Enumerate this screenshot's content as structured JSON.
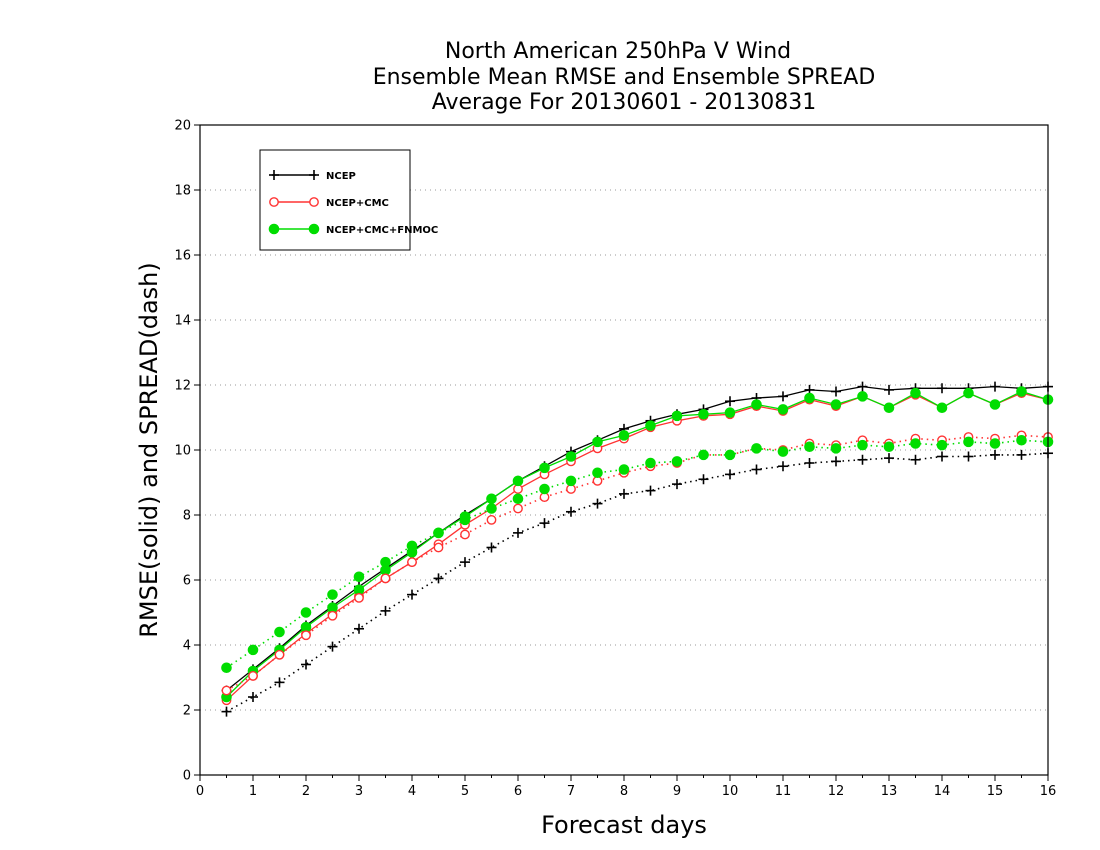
{
  "chart_data": {
    "type": "line",
    "title_lines": [
      "North American 250hPa V Wind",
      "Ensemble Mean RMSE and Ensemble SPREAD",
      "Average For 20130601 - 20130831"
    ],
    "xlabel": "Forecast days",
    "ylabel": "RMSE(solid) and SPREAD(dash)",
    "xlim": [
      0,
      16
    ],
    "ylim": [
      0,
      20
    ],
    "xticks": [
      0,
      1,
      2,
      3,
      4,
      5,
      6,
      7,
      8,
      9,
      10,
      11,
      12,
      13,
      14,
      15,
      16
    ],
    "yticks": [
      0,
      2,
      4,
      6,
      8,
      10,
      12,
      14,
      16,
      18,
      20
    ],
    "grid": "horizontal-dotted",
    "legend_position": "top-left",
    "x": [
      0.5,
      1,
      1.5,
      2,
      2.5,
      3,
      3.5,
      4,
      4.5,
      5,
      5.5,
      6,
      6.5,
      7,
      7.5,
      8,
      8.5,
      9,
      9.5,
      10,
      10.5,
      11,
      11.5,
      12,
      12.5,
      13,
      13.5,
      14,
      14.5,
      15,
      15.5,
      16
    ],
    "series": [
      {
        "name": "NCEP",
        "metric": "rmse",
        "style": "solid",
        "marker": "plus",
        "color": "#000000",
        "values": [
          2.6,
          3.25,
          3.9,
          4.6,
          5.2,
          5.8,
          6.35,
          6.9,
          7.45,
          8.0,
          8.5,
          9.05,
          9.5,
          9.95,
          10.3,
          10.65,
          10.9,
          11.1,
          11.25,
          11.5,
          11.6,
          11.65,
          11.85,
          11.8,
          11.95,
          11.85,
          11.9,
          11.9,
          11.9,
          11.95,
          11.9,
          11.95
        ]
      },
      {
        "name": "NCEP+CMC",
        "metric": "rmse",
        "style": "solid",
        "marker": "circle-open",
        "color": "#ff3333",
        "values": [
          2.3,
          3.05,
          3.7,
          4.35,
          4.95,
          5.5,
          6.05,
          6.55,
          7.1,
          7.7,
          8.2,
          8.8,
          9.25,
          9.65,
          10.05,
          10.35,
          10.7,
          10.9,
          11.05,
          11.1,
          11.35,
          11.2,
          11.55,
          11.35,
          11.65,
          11.3,
          11.7,
          11.3,
          11.75,
          11.4,
          11.75,
          11.55
        ]
      },
      {
        "name": "NCEP+CMC+FNMOC",
        "metric": "rmse",
        "style": "solid",
        "marker": "circle-filled",
        "color": "#00dd00",
        "values": [
          2.4,
          3.2,
          3.85,
          4.55,
          5.15,
          5.7,
          6.3,
          6.85,
          7.45,
          7.95,
          8.5,
          9.05,
          9.45,
          9.8,
          10.25,
          10.45,
          10.75,
          11.05,
          11.1,
          11.15,
          11.4,
          11.25,
          11.6,
          11.4,
          11.65,
          11.3,
          11.75,
          11.3,
          11.75,
          11.4,
          11.8,
          11.55
        ]
      },
      {
        "name": "NCEP",
        "metric": "spread",
        "style": "dotted",
        "marker": "plus",
        "color": "#000000",
        "values": [
          1.95,
          2.4,
          2.85,
          3.4,
          3.95,
          4.5,
          5.05,
          5.55,
          6.05,
          6.55,
          7.0,
          7.45,
          7.75,
          8.1,
          8.35,
          8.65,
          8.75,
          8.95,
          9.1,
          9.25,
          9.4,
          9.5,
          9.6,
          9.65,
          9.7,
          9.75,
          9.7,
          9.8,
          9.8,
          9.85,
          9.85,
          9.9
        ]
      },
      {
        "name": "NCEP+CMC",
        "metric": "spread",
        "style": "dotted",
        "marker": "circle-open",
        "color": "#ff3333",
        "values": [
          2.6,
          3.05,
          3.7,
          4.3,
          4.9,
          5.45,
          6.05,
          6.55,
          7.0,
          7.4,
          7.85,
          8.2,
          8.55,
          8.8,
          9.05,
          9.3,
          9.5,
          9.6,
          9.85,
          9.85,
          10.05,
          10.0,
          10.2,
          10.15,
          10.3,
          10.2,
          10.35,
          10.3,
          10.4,
          10.35,
          10.45,
          10.4
        ]
      },
      {
        "name": "NCEP+CMC+FNMOC",
        "metric": "spread",
        "style": "dotted",
        "marker": "circle-filled",
        "color": "#00dd00",
        "values": [
          3.3,
          3.85,
          4.4,
          5.0,
          5.55,
          6.1,
          6.55,
          7.05,
          7.45,
          7.85,
          8.2,
          8.5,
          8.8,
          9.05,
          9.3,
          9.4,
          9.6,
          9.65,
          9.85,
          9.85,
          10.05,
          9.95,
          10.1,
          10.05,
          10.15,
          10.1,
          10.2,
          10.15,
          10.25,
          10.2,
          10.3,
          10.25
        ]
      }
    ],
    "legend": [
      {
        "label": "NCEP",
        "marker": "plus",
        "color": "#000000"
      },
      {
        "label": "NCEP+CMC",
        "marker": "circle-open",
        "color": "#ff3333"
      },
      {
        "label": "NCEP+CMC+FNMOC",
        "marker": "circle-filled",
        "color": "#00dd00"
      }
    ]
  }
}
